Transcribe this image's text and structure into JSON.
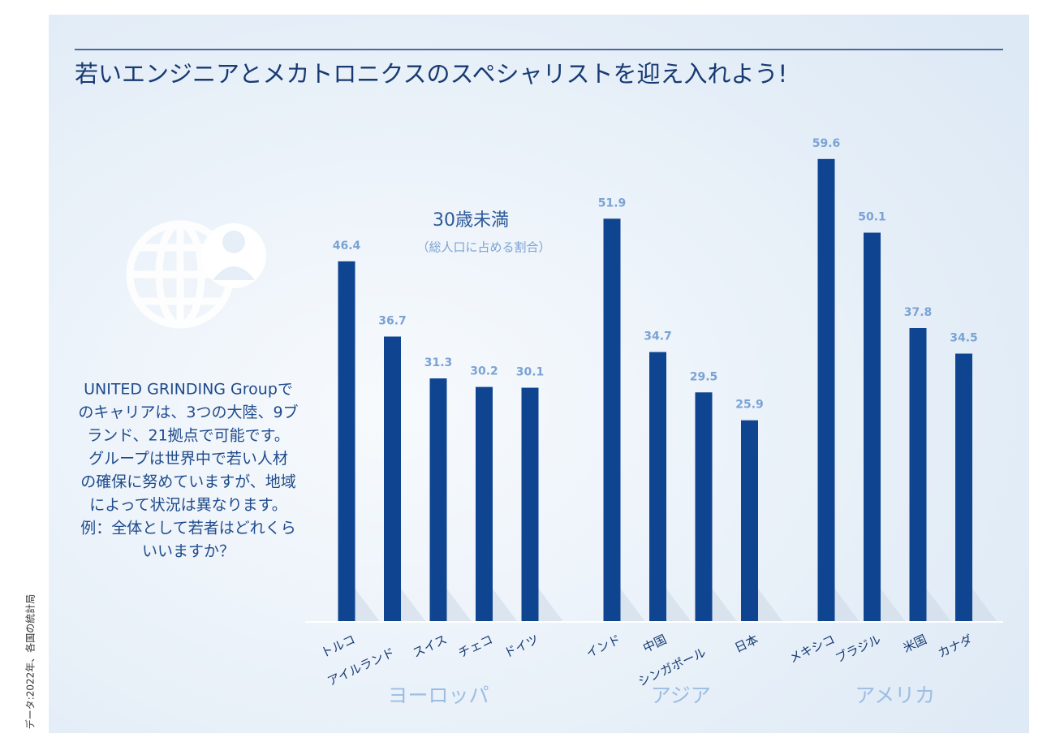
{
  "chart_data": {
    "type": "bar",
    "title": "若いエンジニアとメカトロニクスのスペシャリストを迎え入れよう!",
    "subtitle": "30歳未満",
    "unit_note": "（総人口に占める割合）",
    "color": "#0f4590",
    "series": [
      {
        "name": "ヨーロッパ",
        "categories": [
          "トルコ",
          "アイルランド",
          "スイス",
          "チェコ",
          "ドイツ"
        ],
        "values": [
          46.4,
          36.7,
          31.3,
          30.2,
          30.1
        ]
      },
      {
        "name": "アジア",
        "categories": [
          "インド",
          "中国",
          "シンガポール",
          "日本"
        ],
        "values": [
          51.9,
          34.7,
          29.5,
          25.9
        ]
      },
      {
        "name": "アメリカ",
        "categories": [
          "メキシコ",
          "ブラジル",
          "米国",
          "カナダ"
        ],
        "values": [
          59.6,
          50.1,
          37.8,
          34.5
        ]
      }
    ]
  },
  "side_text": [
    "UNITED GRINDING Groupで",
    "のキャリアは、3つの大陸、9ブ",
    "ランド、21拠点で可能です。",
    "グループは世界中で若い人材",
    "の確保に努めていますが、地域",
    "によって状況は異なります。",
    "例：全体として若者はどれくら",
    "いいますか？"
  ],
  "source": "データ:2022年、各国の統計局"
}
